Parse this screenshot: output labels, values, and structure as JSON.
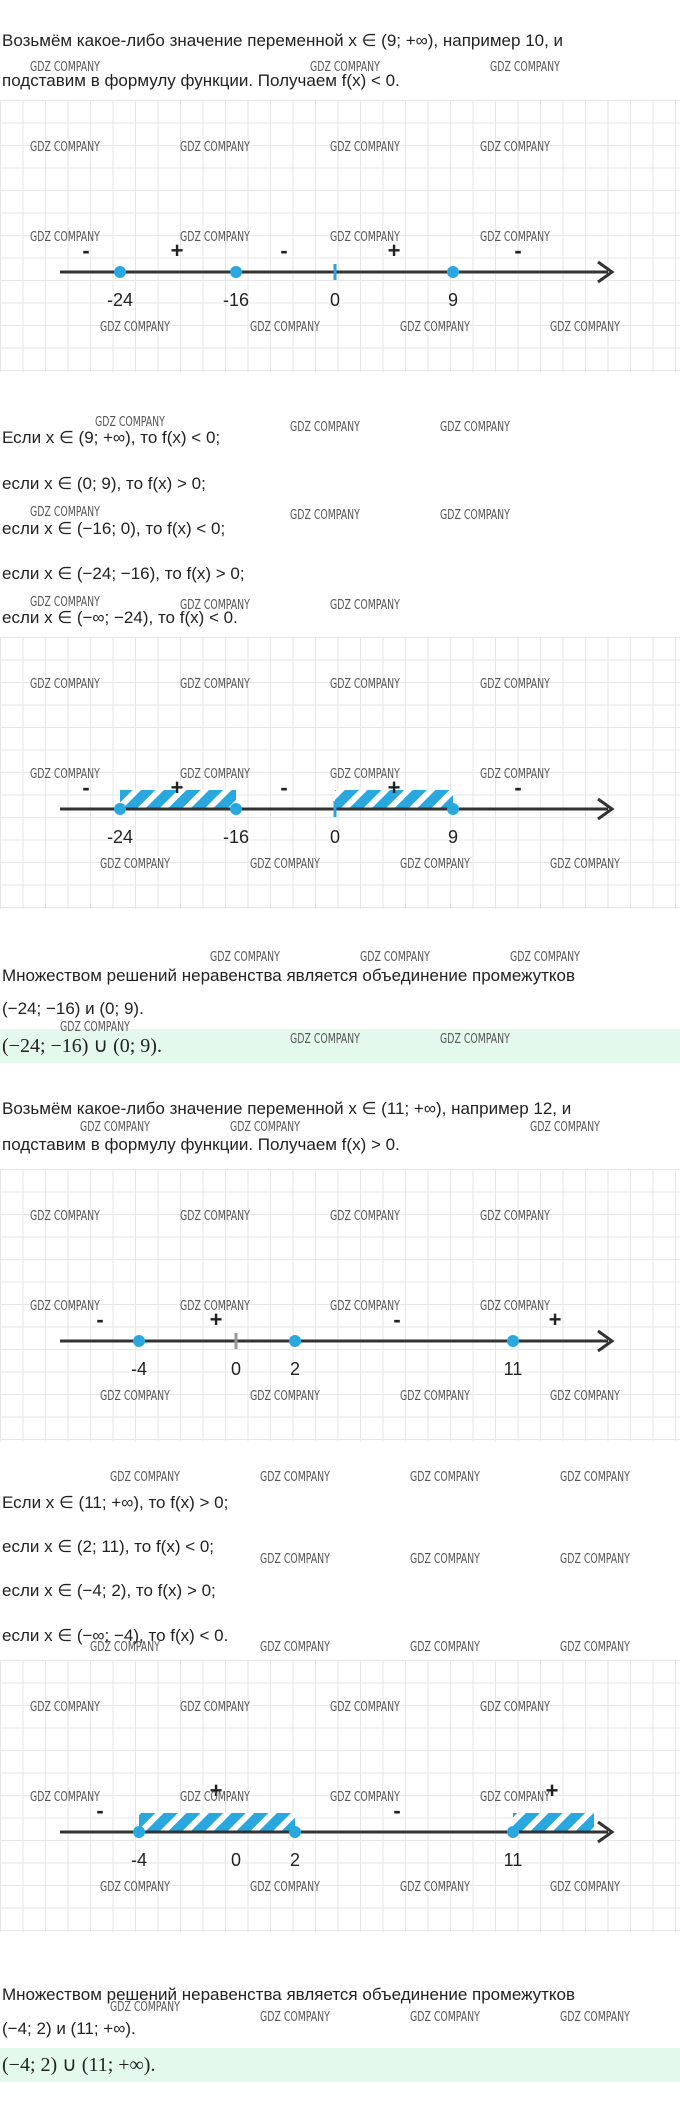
{
  "watermark": "GDZ COMPANY",
  "intro1": [
    "Возьмём какое-либо значение переменной x ∈ (9; +∞), например 10, и",
    "подставим в формулу функции. Получаем f(x) < 0."
  ],
  "diagram1": {
    "points": [
      "-24",
      "-16",
      "0",
      "9"
    ],
    "signs": [
      "-",
      "+",
      "-",
      "+",
      "-"
    ]
  },
  "cases1": [
    "Если x ∈ (9; +∞), то f(x) < 0;",
    "если x ∈ (0; 9), то f(x) > 0;",
    "если x ∈ (−16; 0), то f(x) < 0;",
    "если x ∈ (−24; −16), то f(x) > 0;",
    "если x ∈ (−∞; −24), то f(x) < 0."
  ],
  "diagram2": {
    "points": [
      "-24",
      "-16",
      "0",
      "9"
    ],
    "signs": [
      "-",
      "+",
      "-",
      "+",
      "-"
    ]
  },
  "conclusion1": [
    "Множеством решений неравенства является объединение промежутков",
    "(−24; −16) и (0; 9)."
  ],
  "answer1": "(−24; −16) ∪ (0; 9).",
  "intro2": [
    "Возьмём какое-либо значение переменной x ∈ (11; +∞), например 12, и",
    "подставим в формулу функции. Получаем f(x) > 0."
  ],
  "diagram3": {
    "points": [
      "-4",
      "0",
      "2",
      "11"
    ],
    "signs": [
      "-",
      "+",
      "-",
      "+"
    ]
  },
  "cases2": [
    "Если x ∈ (11; +∞), то f(x) > 0;",
    "если x ∈ (2; 11), то f(x) < 0;",
    "если x ∈ (−4; 2), то f(x) > 0;",
    "если x ∈ (−∞; −4), то f(x) < 0."
  ],
  "diagram4": {
    "points": [
      "-4",
      "0",
      "2",
      "11"
    ],
    "signs": [
      "-",
      "+",
      "-",
      "+"
    ]
  },
  "conclusion2": [
    "Множеством решений неравенства является объединение промежутков",
    "(−4; 2) и (11; +∞)."
  ],
  "answer2": "(−4; 2) ∪ (11; +∞)."
}
